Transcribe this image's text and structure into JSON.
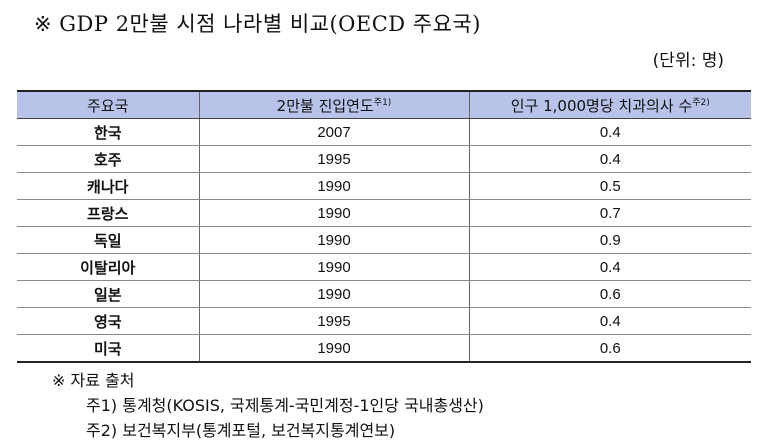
{
  "title": "※  GDP 2만불 시점  나라별 비교(OECD 주요국)",
  "unit": "(단위: 명)",
  "table": {
    "headers": [
      "주요국",
      "2만불 진입연도",
      "인구 1,000명당 치과의사 수"
    ],
    "header_notes": [
      "",
      "주1)",
      "주2)"
    ],
    "rows": [
      [
        "한국",
        "2007",
        "0.4"
      ],
      [
        "호주",
        "1995",
        "0.4"
      ],
      [
        "캐나다",
        "1990",
        "0.5"
      ],
      [
        "프랑스",
        "1990",
        "0.7"
      ],
      [
        "독일",
        "1990",
        "0.9"
      ],
      [
        "이탈리아",
        "1990",
        "0.4"
      ],
      [
        "일본",
        "1990",
        "0.6"
      ],
      [
        "영국",
        "1995",
        "0.4"
      ],
      [
        "미국",
        "1990",
        "0.6"
      ]
    ]
  },
  "notes": {
    "heading": "※  자료 출처",
    "items": [
      "주1) 통계청(KOSIS, 국제통계-국민계정-1인당 국내총생산)",
      "주2) 보건복지부(통계포털, 보건복지통계연보)"
    ]
  }
}
